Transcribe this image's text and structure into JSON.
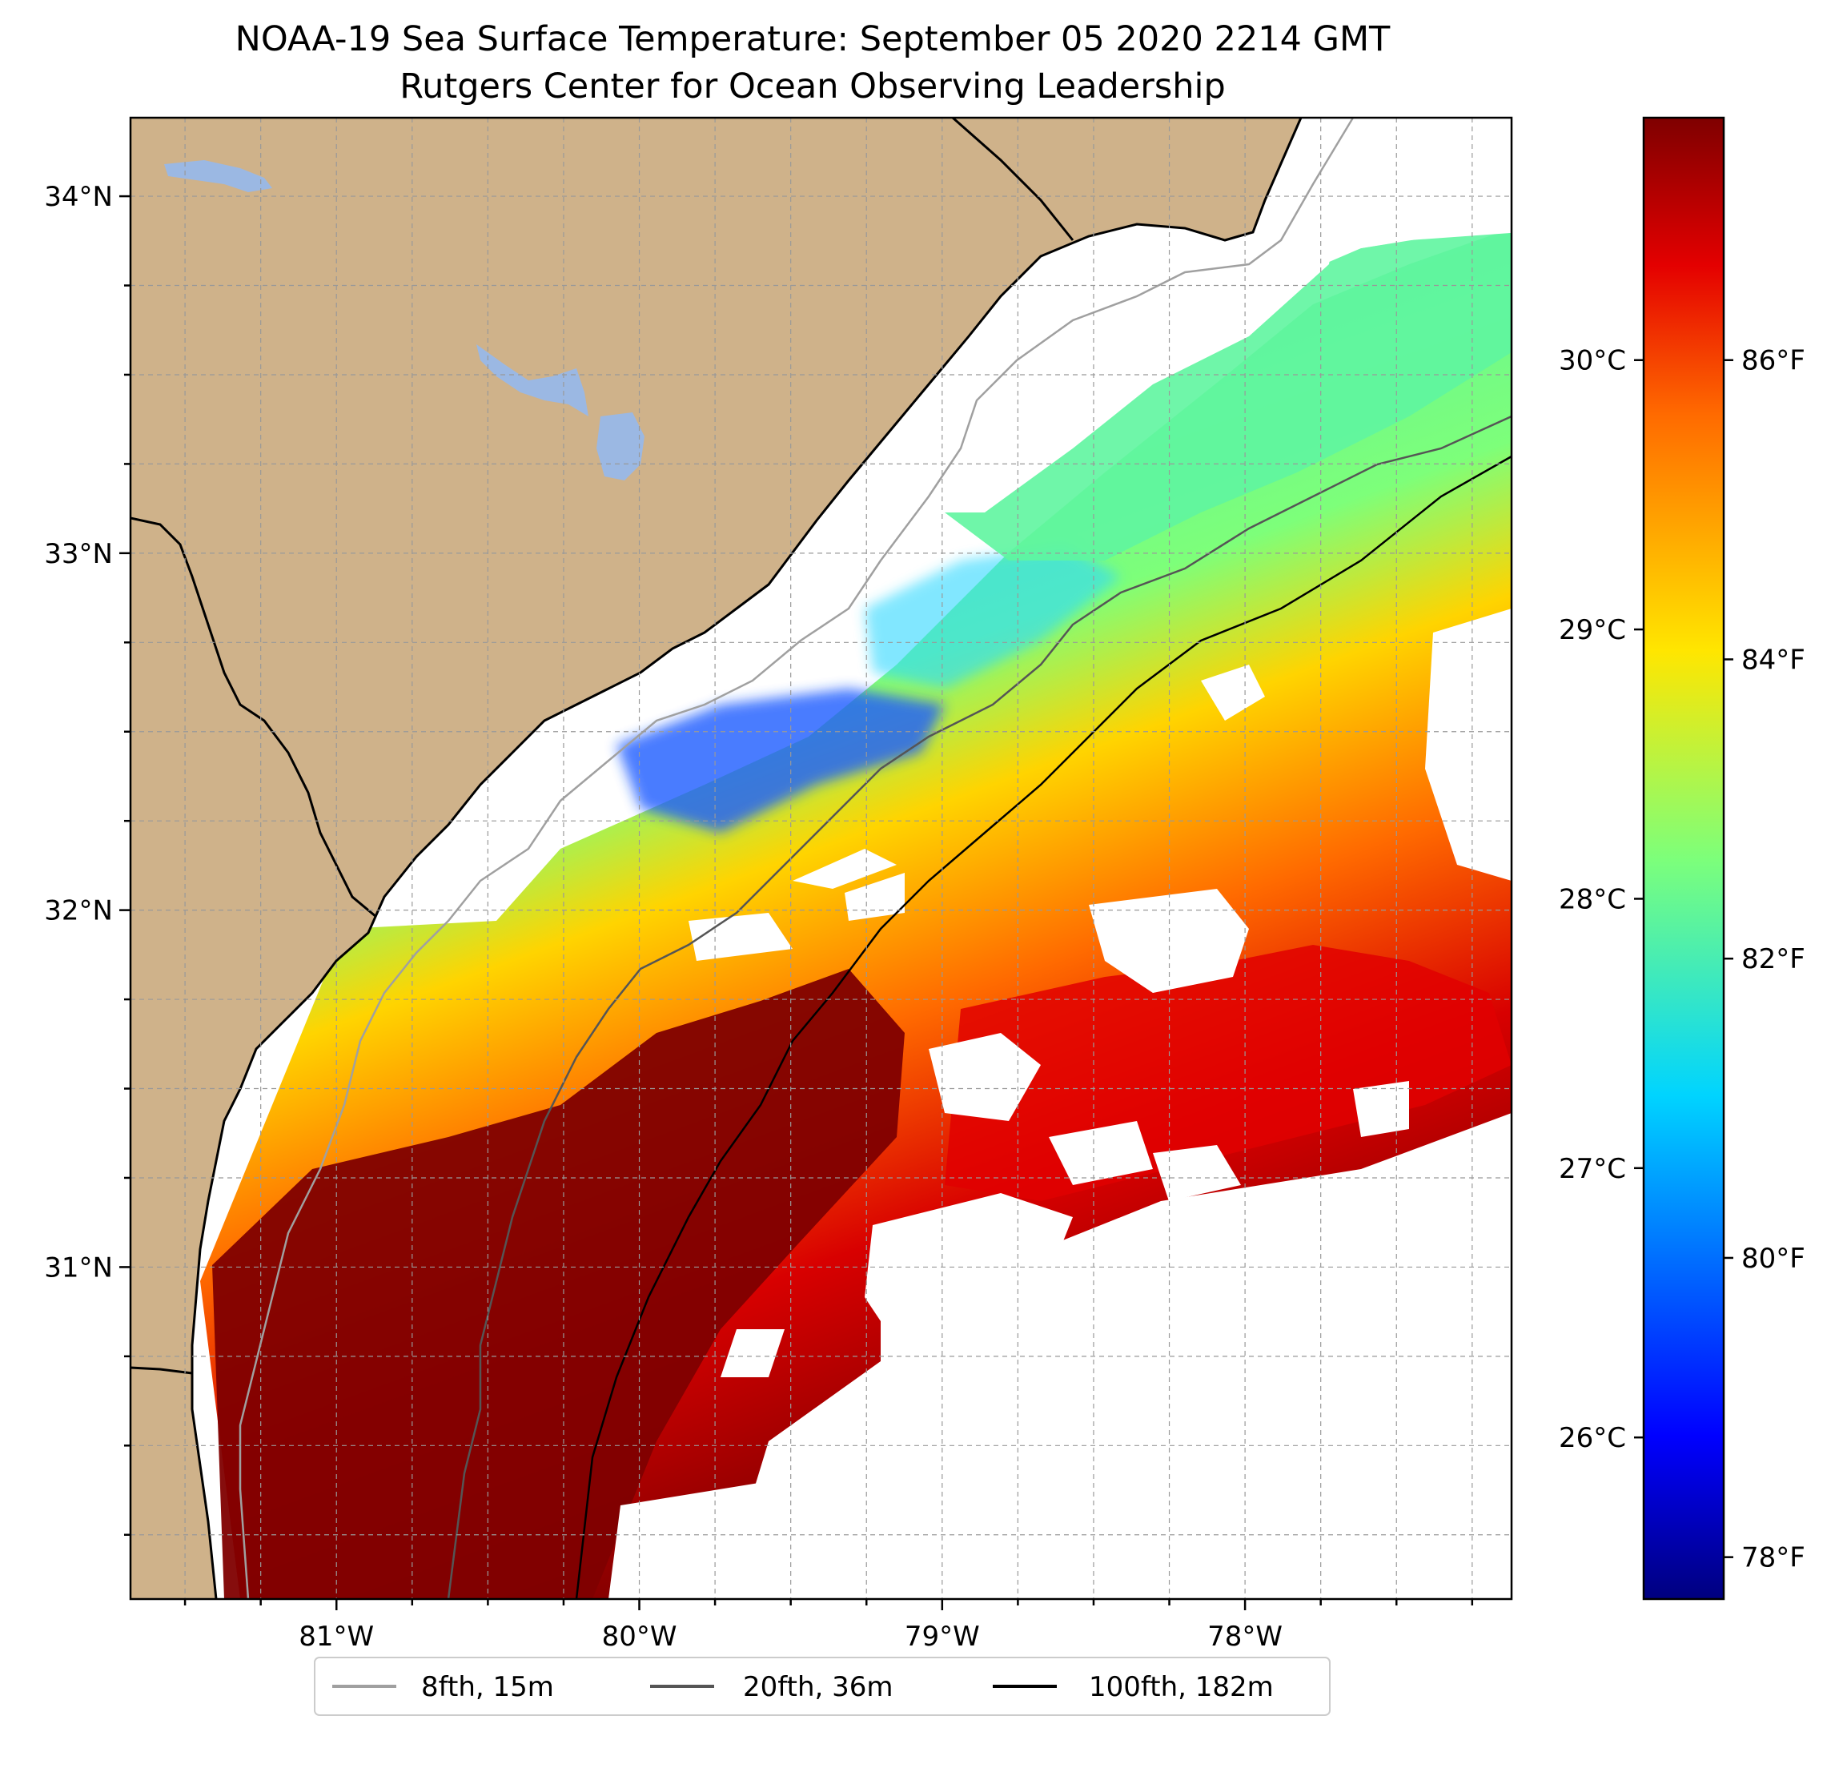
{
  "title": {
    "line1": "NOAA-19 Sea Surface Temperature: September 05 2020 2214 GMT",
    "line2": "Rutgers Center for Ocean Observing Leadership"
  },
  "map": {
    "lon_range": [
      -81.68,
      -77.12
    ],
    "lat_range": [
      30.07,
      34.22
    ],
    "lon_ticks": [
      {
        "value": -81,
        "label": "81°W"
      },
      {
        "value": -80,
        "label": "80°W"
      },
      {
        "value": -79,
        "label": "79°W"
      },
      {
        "value": -78,
        "label": "78°W"
      }
    ],
    "lat_ticks": [
      {
        "value": 34,
        "label": "34°N"
      },
      {
        "value": 33,
        "label": "33°N"
      },
      {
        "value": 32,
        "label": "32°N"
      },
      {
        "value": 31,
        "label": "31°N"
      }
    ],
    "land_color": "#cfb28a",
    "lake_color": "#9bb8e3",
    "grid": true
  },
  "colorbar": {
    "colormap": "jet",
    "range_c": [
      25.4,
      30.9
    ],
    "celsius_ticks": [
      {
        "value": 30,
        "label": "30°C"
      },
      {
        "value": 29,
        "label": "29°C"
      },
      {
        "value": 28,
        "label": "28°C"
      },
      {
        "value": 27,
        "label": "27°C"
      },
      {
        "value": 26,
        "label": "26°C"
      }
    ],
    "fahrenheit_ticks": [
      {
        "value": 86,
        "label": "86°F"
      },
      {
        "value": 84,
        "label": "84°F"
      },
      {
        "value": 82,
        "label": "82°F"
      },
      {
        "value": 80,
        "label": "80°F"
      },
      {
        "value": 78,
        "label": "78°F"
      }
    ]
  },
  "legend": {
    "placement": "bottom-center",
    "items": [
      {
        "label": "8fth, 15m",
        "color": "#a0a0a0"
      },
      {
        "label": "20fth, 36m",
        "color": "#555555"
      },
      {
        "label": "100fth, 182m",
        "color": "#000000"
      }
    ]
  }
}
